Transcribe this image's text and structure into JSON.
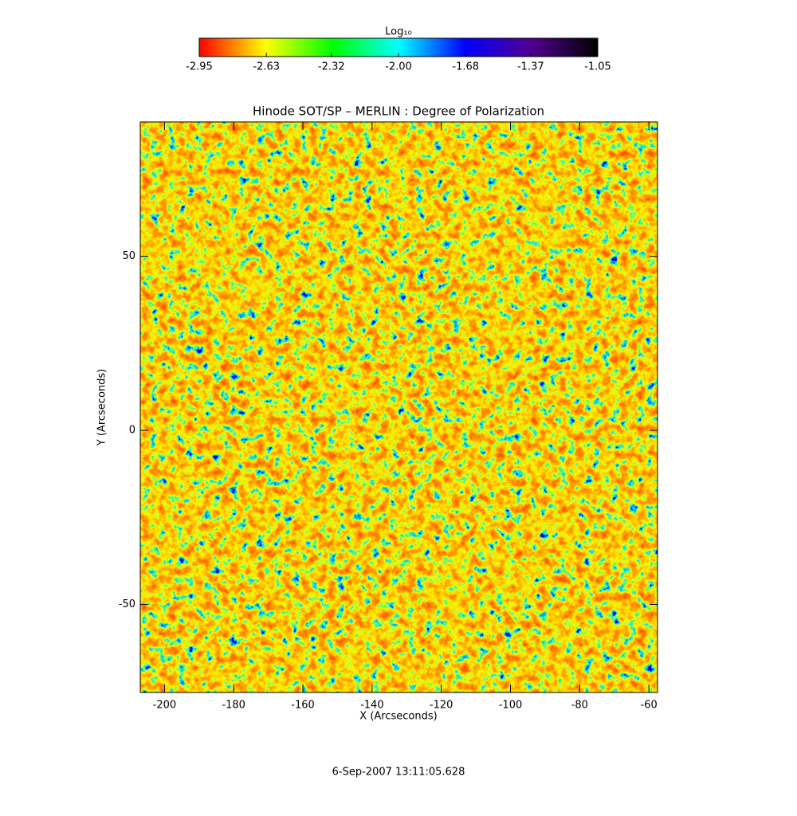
{
  "chart_data": {
    "type": "image",
    "title": "Hinode SOT/SP – MERLIN : Degree of Polarization",
    "x_label": "X (Arcseconds)",
    "y_label": "Y (Arcseconds)",
    "xlim": [
      -207,
      -57.5
    ],
    "xticks": [
      -200,
      -180,
      -160,
      -140,
      -120,
      -100,
      -80,
      -60
    ],
    "ylim": [
      -75.3,
      88.6
    ],
    "yticks": [
      -50,
      0,
      50
    ],
    "colorbar_title": "Log₁₀",
    "clim": [
      -2.95,
      -1.05
    ],
    "cticks": [
      -2.95,
      -2.63,
      -2.32,
      {
        "value": -2,
        "label": "-2.00"
      },
      -1.68,
      -1.37,
      -1.05
    ],
    "colormap": [
      "#ff0000",
      "#ffff00",
      "#00ff00",
      "#00ffff",
      "#0000ff",
      "#500090",
      "#000000"
    ],
    "timestamp": "6-Sep-2007 13:11:05.628"
  }
}
